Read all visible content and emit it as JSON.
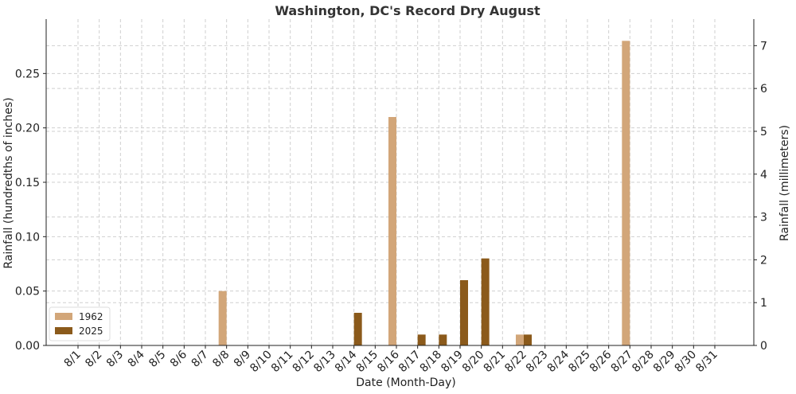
{
  "chart_data": {
    "type": "bar",
    "title": "Washington, DC's Record Dry August",
    "xlabel": "Date (Month-Day)",
    "ylabel": "Rainfall (hundredths of inches)",
    "ylabel_right": "Rainfall (millimeters)",
    "ylim": [
      0,
      0.3
    ],
    "ylim_right": [
      0,
      7.62
    ],
    "yticks": [
      "0.00",
      "0.05",
      "0.10",
      "0.15",
      "0.20",
      "0.25"
    ],
    "yticks_right": [
      "0",
      "1",
      "2",
      "3",
      "4",
      "5",
      "6",
      "7"
    ],
    "grid": true,
    "legend_position": "lower-left",
    "categories": [
      "8/1",
      "8/2",
      "8/3",
      "8/4",
      "8/5",
      "8/6",
      "8/7",
      "8/8",
      "8/9",
      "8/10",
      "8/11",
      "8/12",
      "8/13",
      "8/14",
      "8/15",
      "8/16",
      "8/17",
      "8/18",
      "8/19",
      "8/20",
      "8/21",
      "8/22",
      "8/23",
      "8/24",
      "8/25",
      "8/26",
      "8/27",
      "8/28",
      "8/29",
      "8/30",
      "8/31"
    ],
    "series": [
      {
        "name": "1962",
        "color": "#d2a679",
        "values": [
          0,
          0,
          0,
          0,
          0,
          0,
          0,
          0.05,
          0,
          0,
          0,
          0,
          0,
          0,
          0,
          0.21,
          0,
          0,
          0,
          0,
          0,
          0.01,
          0,
          0,
          0,
          0,
          0.28,
          0,
          0,
          0,
          0
        ]
      },
      {
        "name": "2025",
        "color": "#8b5a1b",
        "values": [
          0,
          0,
          0,
          0,
          0,
          0,
          0,
          0,
          0,
          0,
          0,
          0,
          0,
          0.03,
          0,
          0,
          0.01,
          0.01,
          0.06,
          0.08,
          0,
          0.01,
          0,
          0,
          0,
          0,
          0,
          0,
          0,
          0,
          0
        ]
      }
    ]
  }
}
